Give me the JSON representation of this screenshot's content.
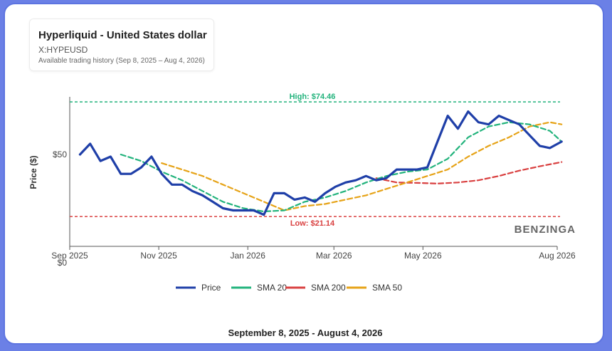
{
  "header": {
    "title": "Hyperliquid - United States dollar",
    "symbol": "X:HYPEUSD",
    "history": "Available trading history (Sep 8, 2025 – Aug 4, 2026)"
  },
  "footer": {
    "date_range": "September 8, 2025 - August 4, 2026"
  },
  "watermark": "BENZINGA",
  "colors": {
    "price": "#1f3fa8",
    "sma20": "#22b37c",
    "sma200": "#d94040",
    "sma50": "#e6a317",
    "high": "#22b37c",
    "low": "#d94040",
    "frame": "#5d74e0"
  },
  "chart_data": {
    "type": "line",
    "xlabel": "",
    "ylabel": "Price ($)",
    "x_ticks": [
      "Sep 2025",
      "Nov 2025",
      "Jan 2026",
      "Mar 2026",
      "May 2026",
      "Aug 2026"
    ],
    "y_ticks": [
      "$0",
      "$50"
    ],
    "ylim": [
      0,
      80
    ],
    "annotations": {
      "high_label": "High: $74.46",
      "high": 74.46,
      "low_label": "Low: $21.14",
      "low": 21.14
    },
    "legend": [
      "Price",
      "SMA 20",
      "SMA 200",
      "SMA 50"
    ],
    "legend_position": "bottom",
    "grid": false,
    "series": [
      {
        "name": "Price",
        "x": [
          "2025-09-08",
          "2025-09-15",
          "2025-09-22",
          "2025-09-29",
          "2025-10-06",
          "2025-10-13",
          "2025-10-20",
          "2025-10-27",
          "2025-11-03",
          "2025-11-10",
          "2025-11-17",
          "2025-11-24",
          "2025-12-01",
          "2025-12-08",
          "2025-12-15",
          "2025-12-22",
          "2025-12-29",
          "2026-01-05",
          "2026-01-12",
          "2026-01-19",
          "2026-01-26",
          "2026-02-02",
          "2026-02-09",
          "2026-02-16",
          "2026-02-23",
          "2026-03-02",
          "2026-03-09",
          "2026-03-16",
          "2026-03-23",
          "2026-03-30",
          "2026-04-06",
          "2026-04-13",
          "2026-04-20",
          "2026-04-27",
          "2026-05-04",
          "2026-05-11",
          "2026-05-18",
          "2026-05-25",
          "2026-06-01",
          "2026-06-08",
          "2026-06-15",
          "2026-06-22",
          "2026-06-29",
          "2026-07-06",
          "2026-07-13",
          "2026-07-20",
          "2026-07-27",
          "2026-08-04"
        ],
        "values": [
          50,
          55,
          47,
          49,
          41,
          41,
          44,
          49,
          41,
          36,
          36,
          33,
          31,
          28,
          25,
          24,
          24,
          24,
          22,
          32,
          32,
          29,
          30,
          28,
          32,
          35,
          37,
          38,
          40,
          38,
          39,
          43,
          43,
          43,
          44,
          56,
          68,
          62,
          70,
          65,
          64,
          68,
          66,
          64,
          59,
          54,
          53,
          56
        ]
      },
      {
        "name": "SMA 20",
        "x": [
          "2025-10-06",
          "2025-10-20",
          "2025-11-03",
          "2025-11-17",
          "2025-12-01",
          "2025-12-15",
          "2025-12-29",
          "2026-01-12",
          "2026-01-26",
          "2026-02-09",
          "2026-02-23",
          "2026-03-09",
          "2026-03-23",
          "2026-04-06",
          "2026-04-20",
          "2026-05-04",
          "2026-05-18",
          "2026-06-01",
          "2026-06-15",
          "2026-06-29",
          "2026-07-13",
          "2026-07-27",
          "2026-08-04"
        ],
        "values": [
          50,
          47,
          42,
          38,
          33,
          28,
          25,
          23.5,
          24,
          28,
          30,
          33,
          37,
          40,
          42,
          43,
          48,
          58,
          63,
          65,
          64,
          61,
          56
        ]
      },
      {
        "name": "SMA 200",
        "x": [
          "2026-03-30",
          "2026-04-13",
          "2026-04-27",
          "2026-05-11",
          "2026-05-25",
          "2026-06-08",
          "2026-06-22",
          "2026-07-06",
          "2026-07-20",
          "2026-08-04"
        ],
        "values": [
          39,
          37,
          36.8,
          36.5,
          37,
          38,
          40,
          42.5,
          44.5,
          46.5
        ]
      },
      {
        "name": "SMA 50",
        "x": [
          "2025-11-03",
          "2025-11-17",
          "2025-12-01",
          "2025-12-15",
          "2025-12-29",
          "2026-01-12",
          "2026-01-26",
          "2026-02-09",
          "2026-02-23",
          "2026-03-09",
          "2026-03-23",
          "2026-04-06",
          "2026-04-20",
          "2026-05-04",
          "2026-05-18",
          "2026-06-01",
          "2026-06-15",
          "2026-06-29",
          "2026-07-13",
          "2026-07-27",
          "2026-08-04"
        ],
        "values": [
          46,
          43,
          40,
          36,
          32,
          28,
          24,
          26,
          27,
          29,
          31,
          34,
          37,
          40,
          43,
          49,
          54,
          58,
          63,
          65,
          64
        ]
      }
    ]
  }
}
